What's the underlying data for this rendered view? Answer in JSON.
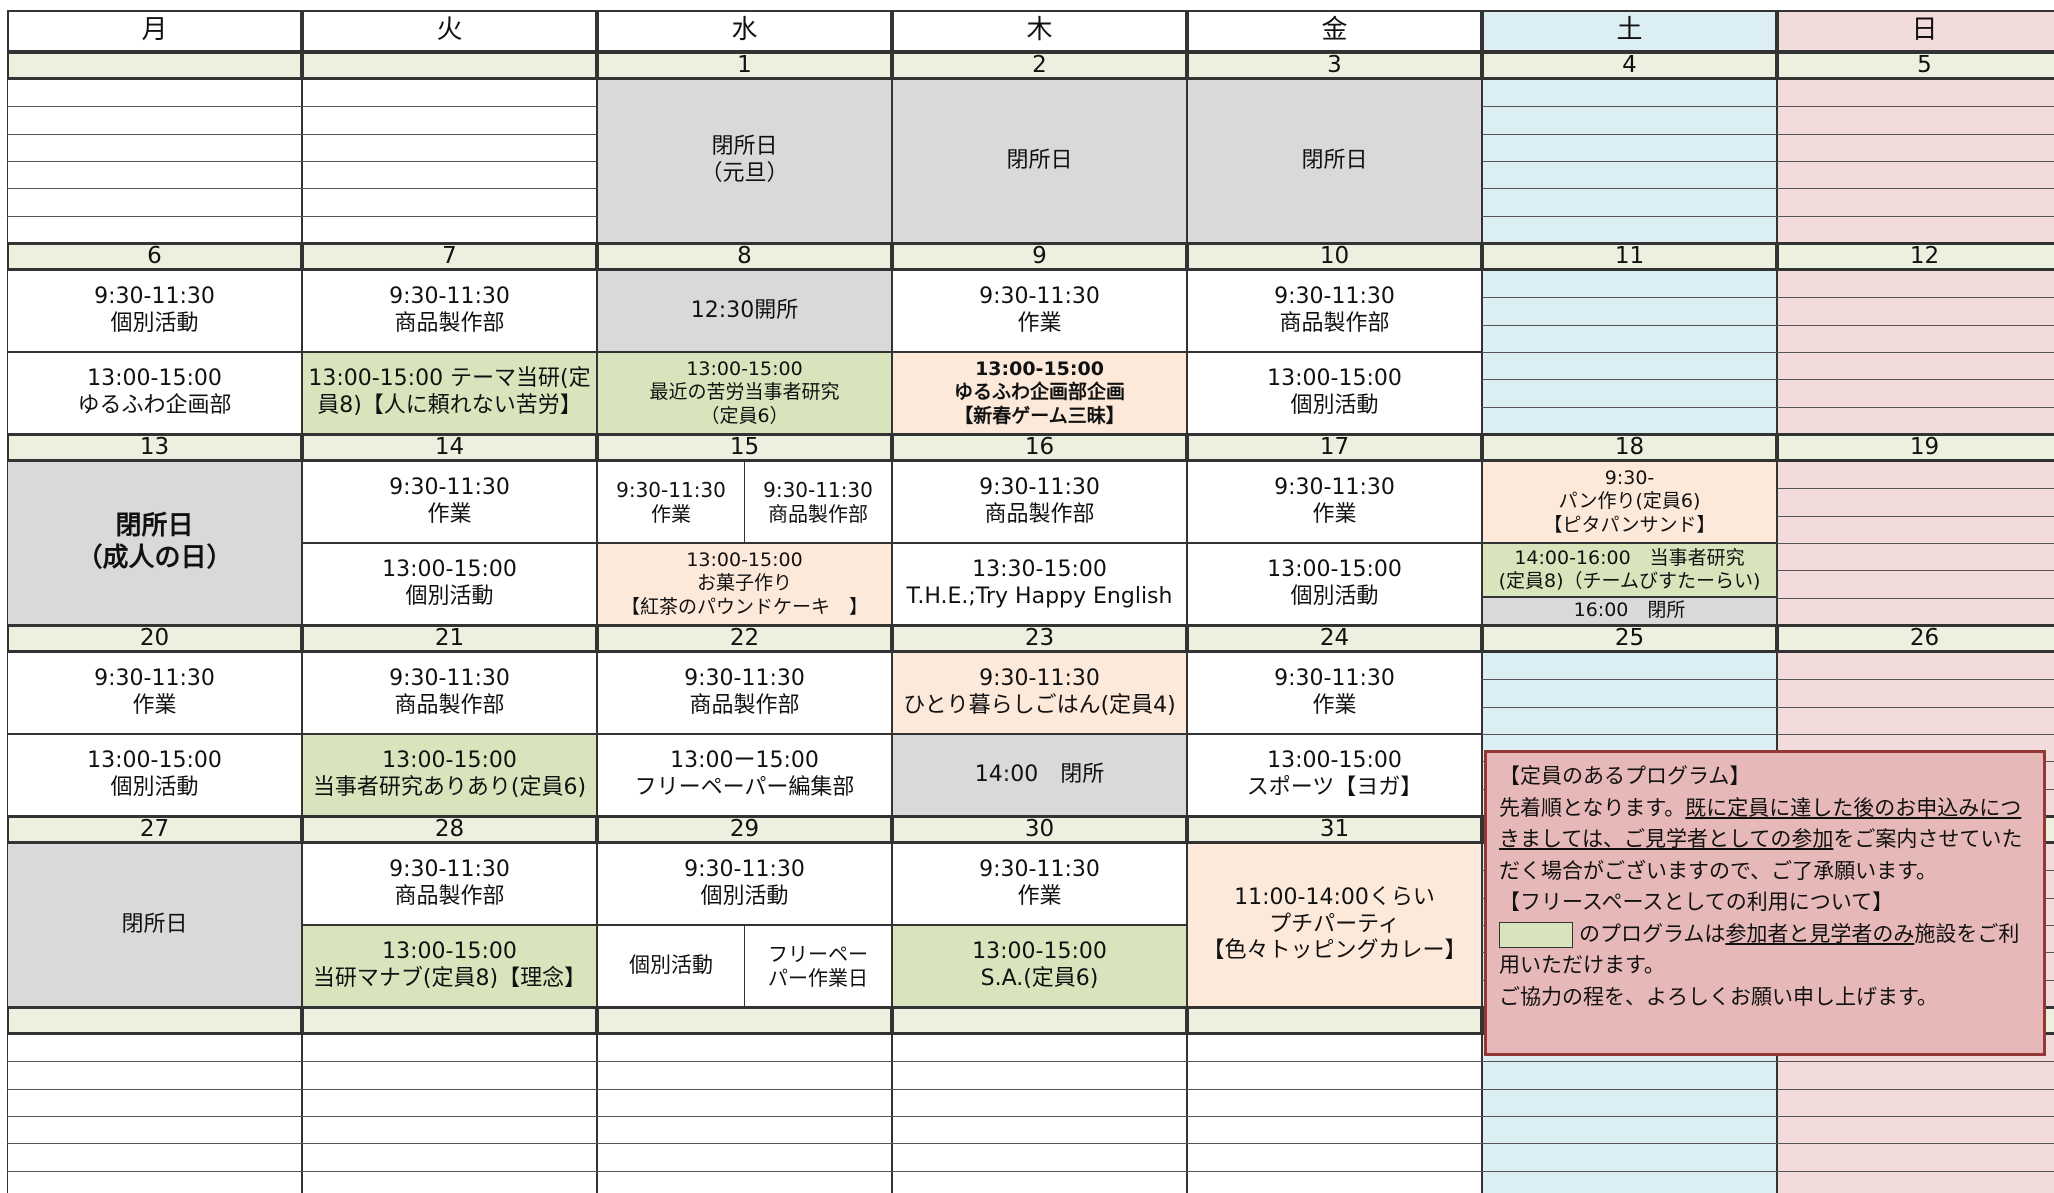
{
  "weekdays": [
    "月",
    "火",
    "水",
    "木",
    "金",
    "土",
    "日"
  ],
  "column_colors": [
    "#ffffff",
    "#ffffff",
    "#ffffff",
    "#ffffff",
    "#ffffff",
    "#daeef3",
    "#f2dcdb"
  ],
  "date_row_color": "#ebf1de",
  "weeks": [
    {
      "dates": [
        null,
        null,
        1,
        2,
        3,
        4,
        5
      ],
      "cells": [
        null,
        null,
        {
          "full": {
            "lines": [
              "閉所日",
              "（元旦）"
            ],
            "color": "#d9d9d9"
          }
        },
        {
          "full": {
            "lines": [
              "閉所日"
            ],
            "color": "#d9d9d9"
          }
        },
        {
          "full": {
            "lines": [
              "閉所日"
            ],
            "color": "#d9d9d9"
          }
        },
        null,
        null
      ]
    },
    {
      "dates": [
        6,
        7,
        8,
        9,
        10,
        11,
        12
      ],
      "cells": [
        {
          "am": {
            "lines": [
              "9:30-11:30",
              "個別活動"
            ]
          },
          "pm": {
            "lines": [
              "13:00-15:00",
              "ゆるふわ企画部"
            ]
          }
        },
        {
          "am": {
            "lines": [
              "9:30-11:30",
              "商品製作部"
            ]
          },
          "pm": {
            "lines": [
              "13:00-15:00 テーマ当研(定",
              "員8)【人に頼れない苦労】"
            ],
            "color": "#d8e4bc"
          }
        },
        {
          "am": {
            "lines": [
              "12:30開所"
            ],
            "color": "#d9d9d9"
          },
          "pm": {
            "lines": [
              "13:00-15:00",
              "最近の苦労当事者研究",
              "（定員6）"
            ],
            "color": "#d8e4bc"
          }
        },
        {
          "am": {
            "lines": [
              "9:30-11:30",
              "作業"
            ]
          },
          "pm": {
            "lines": [
              "13:00-15:00",
              "ゆるふわ企画部企画",
              "【新春ゲーム三昧】"
            ],
            "color": "#fde9d9",
            "bold": true
          }
        },
        {
          "am": {
            "lines": [
              "9:30-11:30",
              "商品製作部"
            ]
          },
          "pm": {
            "lines": [
              "13:00-15:00",
              "個別活動"
            ]
          }
        },
        null,
        null
      ]
    },
    {
      "dates": [
        13,
        14,
        15,
        16,
        17,
        18,
        19
      ],
      "cells": [
        {
          "full": {
            "lines": [
              "閉所日",
              "（成人の日）"
            ],
            "color": "#d9d9d9",
            "bold": true
          }
        },
        {
          "am": {
            "lines": [
              "9:30-11:30",
              "作業"
            ]
          },
          "pm": {
            "lines": [
              "13:00-15:00",
              "個別活動"
            ]
          }
        },
        {
          "am": {
            "parts": [
              {
                "lines": [
                  "9:30-11:30",
                  "作業"
                ]
              },
              {
                "lines": [
                  "9:30-11:30",
                  "商品製作部"
                ]
              }
            ]
          },
          "pm": {
            "lines": [
              "13:00-15:00",
              "お菓子作り",
              "【紅茶のパウンドケーキ　】"
            ],
            "color": "#fde9d9"
          }
        },
        {
          "am": {
            "lines": [
              "9:30-11:30",
              "商品製作部"
            ]
          },
          "pm": {
            "lines": [
              "13:30-15:00",
              "T.H.E.;Try Happy English"
            ]
          }
        },
        {
          "am": {
            "lines": [
              "9:30-11:30",
              "作業"
            ]
          },
          "pm": {
            "lines": [
              "13:00-15:00",
              "個別活動"
            ]
          }
        },
        {
          "am": {
            "lines": [
              "9:30-",
              "パン作り(定員6)",
              "【ピタパンサンド】"
            ],
            "color": "#fde9d9"
          },
          "pm": {
            "lines": [
              "14:00-16:00　当事者研究",
              "(定員8)（チームびすたーらい)"
            ],
            "color": "#d8e4bc"
          },
          "close": {
            "lines": [
              "16:00　閉所"
            ],
            "color": "#d9d9d9"
          }
        },
        null
      ]
    },
    {
      "dates": [
        20,
        21,
        22,
        23,
        24,
        25,
        26
      ],
      "cells": [
        {
          "am": {
            "lines": [
              "9:30-11:30",
              "作業"
            ]
          },
          "pm": {
            "lines": [
              "13:00-15:00",
              "個別活動"
            ]
          }
        },
        {
          "am": {
            "lines": [
              "9:30-11:30",
              "商品製作部"
            ]
          },
          "pm": {
            "lines": [
              "13:00-15:00",
              "当事者研究ありあり(定員6)"
            ],
            "color": "#d8e4bc"
          }
        },
        {
          "am": {
            "lines": [
              "9:30-11:30",
              "商品製作部"
            ]
          },
          "pm": {
            "lines": [
              "13:00ー15:00",
              "フリーペーパー編集部"
            ]
          }
        },
        {
          "am": {
            "lines": [
              "9:30-11:30",
              "ひとり暮らしごはん(定員4)"
            ],
            "color": "#fde9d9"
          },
          "pm": {
            "lines": [
              "14:00　閉所"
            ],
            "color": "#d9d9d9"
          }
        },
        {
          "am": {
            "lines": [
              "9:30-11:30",
              "作業"
            ]
          },
          "pm": {
            "lines": [
              "13:00-15:00",
              "スポーツ【ヨガ】"
            ]
          }
        },
        null,
        null
      ]
    },
    {
      "dates": [
        27,
        28,
        29,
        30,
        31,
        null,
        null
      ],
      "cells": [
        {
          "full": {
            "lines": [
              "閉所日"
            ],
            "color": "#d9d9d9"
          }
        },
        {
          "am": {
            "lines": [
              "9:30-11:30",
              "商品製作部"
            ]
          },
          "pm": {
            "lines": [
              "13:00-15:00",
              "当研マナブ(定員8)【理念】"
            ],
            "color": "#d8e4bc"
          }
        },
        {
          "am": {
            "lines": [
              "9:30-11:30",
              "個別活動"
            ]
          },
          "pm": {
            "parts": [
              {
                "lines": [
                  "個別活動"
                ]
              },
              {
                "lines": [
                  "フリーペー",
                  "パー作業日"
                ]
              }
            ]
          }
        },
        {
          "am": {
            "lines": [
              "9:30-11:30",
              "作業"
            ]
          },
          "pm": {
            "lines": [
              "13:00-15:00",
              "S.A.(定員6)"
            ],
            "color": "#d8e4bc"
          }
        },
        {
          "full": {
            "lines": [
              "11:00-14:00くらい",
              "プチパーティ",
              "【色々トッピングカレー】"
            ],
            "color": "#fde9d9"
          }
        },
        null,
        null
      ]
    },
    {
      "dates": [
        null,
        null,
        null,
        null,
        null,
        null,
        null
      ],
      "cells": [
        null,
        null,
        null,
        null,
        null,
        null,
        null
      ]
    }
  ],
  "note": {
    "color": "#e6b8b7",
    "border": "#953735",
    "paragraphs": [
      {
        "parts": [
          {
            "text": "【定員のあるプログラム】"
          }
        ]
      },
      {
        "parts": [
          {
            "text": "先着順となります。"
          },
          {
            "text": "既に定員に達した後のお申込みにつきましては、ご見学者としての参加",
            "underline": true
          },
          {
            "text": "をご案内させていただく場合がございますので、ご了承願います。"
          }
        ]
      },
      {
        "parts": [
          {
            "text": "【フリースペースとしての利用について】"
          }
        ]
      },
      {
        "swatch": "#d8e4bc",
        "parts": [
          {
            "text": "のプログラムは"
          },
          {
            "text": "参加者と見学者のみ",
            "underline": true
          },
          {
            "text": "施設をご利用いただけます。"
          }
        ]
      },
      {
        "parts": [
          {
            "text": "ご協力の程を、よろしくお願い申し上げます。"
          }
        ]
      }
    ]
  }
}
